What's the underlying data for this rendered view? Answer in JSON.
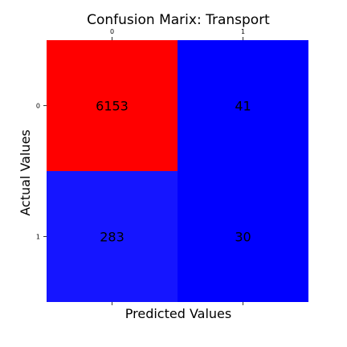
{
  "chart_data": {
    "type": "heatmap",
    "title": "Confusion Marix: Transport",
    "xlabel": "Predicted Values",
    "ylabel": "Actual Values",
    "x_categories": [
      "0",
      "1"
    ],
    "y_categories": [
      "0",
      "1"
    ],
    "values": [
      [
        6153,
        41
      ],
      [
        283,
        30
      ]
    ],
    "colormap": "bwr",
    "colors": {
      "high": "#ff0000",
      "low": "#0000ff",
      "cell_1_0": "#1515ff"
    },
    "x_ticks_position": "top",
    "grid": false
  }
}
